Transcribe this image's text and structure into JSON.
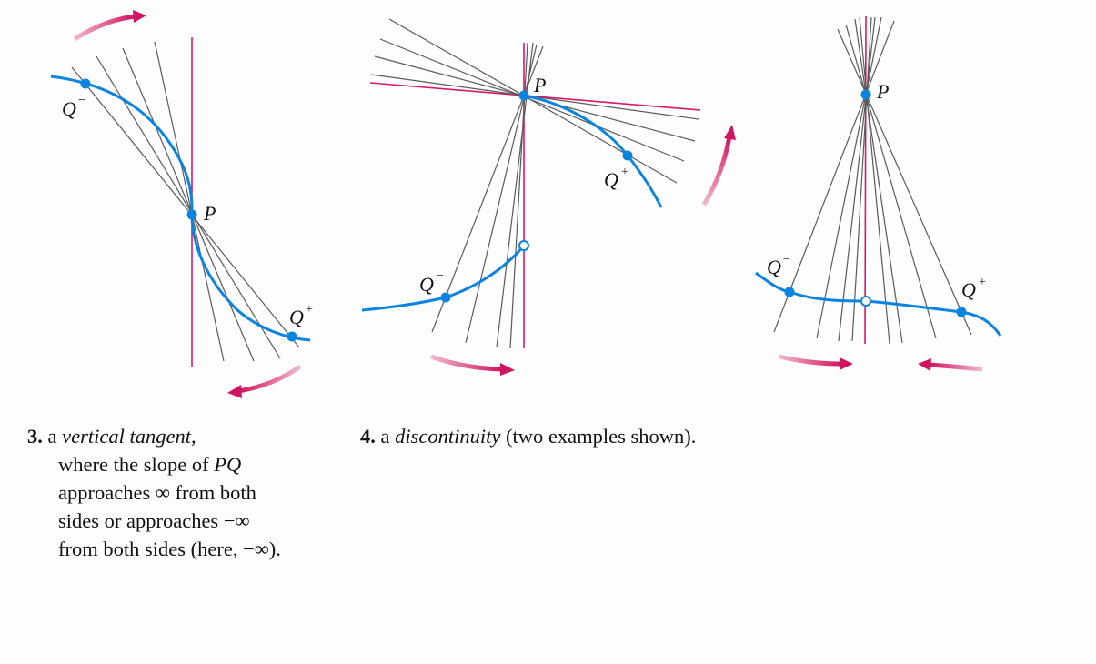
{
  "colors": {
    "curve": "#0a84e0",
    "tangent": "#d6186a",
    "secant": "#5a5a5a",
    "arrow": "#d0145f"
  },
  "labels": {
    "P": "P",
    "Q": "Q",
    "minus": "−",
    "plus": "+"
  },
  "caption3": {
    "number": "3.",
    "prefix": "a ",
    "term": "vertical tangent",
    "suffix": ",",
    "line2a": "where the slope of ",
    "line2b": "PQ",
    "line3": "approaches ∞ from both",
    "line4": "sides or approaches −∞",
    "line5": "from both sides (here, −∞)."
  },
  "caption4": {
    "number": "4.",
    "prefix": "a ",
    "term": "discontinuity",
    "suffix": " (two examples shown)."
  }
}
